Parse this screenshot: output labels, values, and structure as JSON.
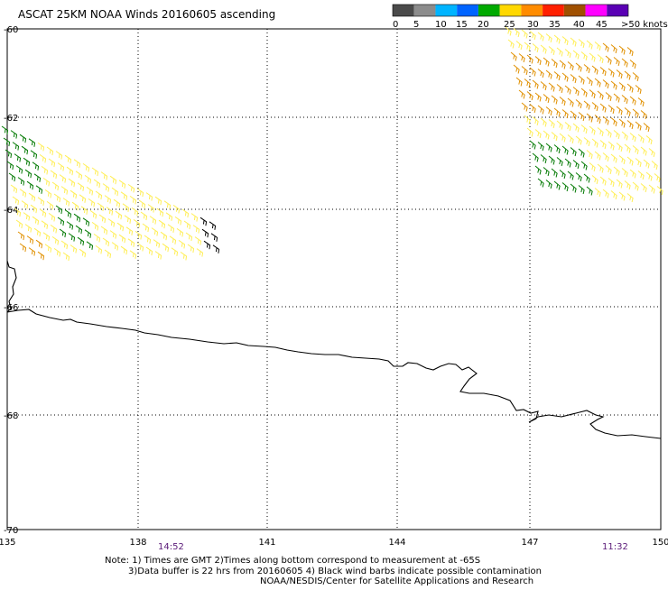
{
  "title": "ASCAT 25KM NOAA Winds 20160605 ascending",
  "colorbar": {
    "labels": [
      "0",
      "5",
      "10",
      "15",
      "20",
      "25",
      "30",
      "35",
      "40",
      "45",
      ">50 knots"
    ],
    "colors": [
      "#4a4a4a",
      "#8c8c8c",
      "#00b4ff",
      "#0064ff",
      "#00aa00",
      "#ffd800",
      "#ff8c00",
      "#ff2000",
      "#a05000",
      "#ff00ff",
      "#5a00b4"
    ]
  },
  "latitudes": [
    "-60",
    "-62",
    "-64",
    "-66",
    "-68",
    "-70"
  ],
  "longitudes": [
    "135",
    "138",
    "141",
    "144",
    "147",
    "150"
  ],
  "times": {
    "left": "14:52",
    "right": "11:32"
  },
  "notes": [
    "Note: 1) Times are GMT 2)Times along bottom correspond to measurement at -65S",
    "3)Data buffer is 22 hrs from 20160605 4) Black wind barbs indicate possible contamination",
    "NOAA/NESDIS/Center for Satellite Applications and Research"
  ],
  "wind_colors": {
    "weak": "#ffee55",
    "green": "#007800",
    "orange": "#e09000",
    "red": "#d83010",
    "black": "#000000"
  }
}
